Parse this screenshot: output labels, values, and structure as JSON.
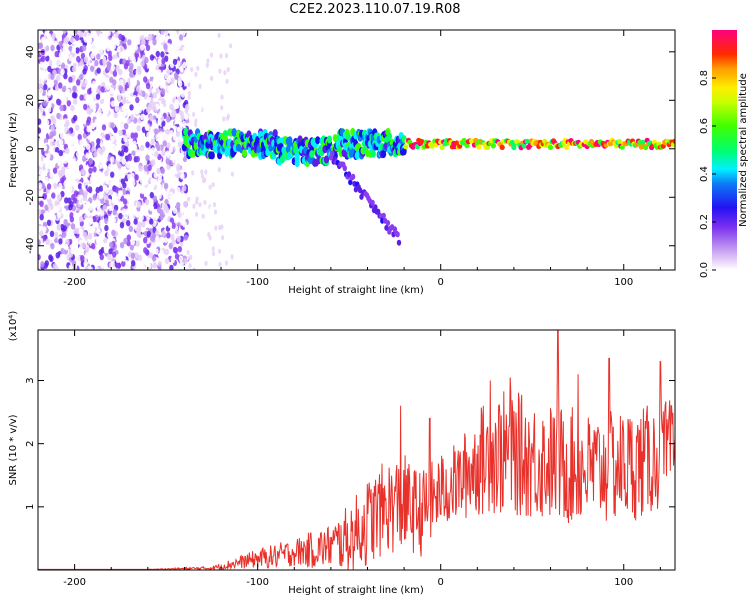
{
  "figure": {
    "title": "C2E2.2023.110.07.19.R08"
  },
  "chart_data": [
    {
      "type": "heatmap",
      "panel": "spectrogram",
      "xlabel": "Height of straight line (km)",
      "ylabel": "Frequency (Hz)",
      "xlim": [
        -220,
        128
      ],
      "ylim": [
        -50,
        49
      ],
      "xticks": [
        -200,
        -100,
        0,
        100
      ],
      "yticks": [
        40,
        20,
        0,
        -20,
        -40
      ],
      "colorbar": {
        "label": "Normalized spectral amplitude",
        "range": [
          0.0,
          1.0
        ],
        "ticks": [
          "0.0",
          "0.2",
          "0.4",
          "0.6",
          "0.8"
        ],
        "colormap": [
          "#ffffff",
          "#e6cff8",
          "#b98cef",
          "#8a3cf0",
          "#5a1ee6",
          "#1a10f0",
          "#0b7cf5",
          "#00f0ff",
          "#00ff6a",
          "#40ff00",
          "#c8ff00",
          "#ffee00",
          "#ff9a00",
          "#ff2a00",
          "#ff0080",
          "#ff00ff"
        ]
      },
      "features": [
        {
          "name": "broadband_noise",
          "x_range": [
            -220,
            -138
          ],
          "y_range": [
            -50,
            49
          ],
          "amplitude": 0.15
        },
        {
          "name": "signal_band",
          "x_range": [
            -140,
            128
          ],
          "center_hz": 2,
          "halfwidth_hz": 2.5,
          "amplitude": 0.9
        },
        {
          "name": "diverging_branch",
          "x_start": -60,
          "x_end": -22,
          "y_start": -2,
          "y_end": -38
        }
      ]
    },
    {
      "type": "line",
      "panel": "snr",
      "xlabel": "Height of straight line (km)",
      "ylabel": "SNR (10 * v/v)",
      "y_multiplier_label": "(x10⁴)",
      "xlim": [
        -220,
        128
      ],
      "ylim": [
        0,
        3.8
      ],
      "xticks": [
        -200,
        -100,
        0,
        100
      ],
      "yticks": [
        1,
        2,
        3
      ],
      "color": "#e8312b",
      "envelope": {
        "x": [
          -220,
          -160,
          -125,
          -110,
          -100,
          -90,
          -80,
          -70,
          -60,
          -50,
          -40,
          -30,
          -20,
          -15,
          -10,
          0,
          10,
          20,
          30,
          40,
          50,
          60,
          70,
          80,
          90,
          100,
          110,
          120,
          128
        ],
        "y": [
          0.01,
          0.01,
          0.03,
          0.12,
          0.18,
          0.22,
          0.28,
          0.32,
          0.38,
          0.5,
          0.75,
          1.0,
          1.05,
          0.95,
          0.9,
          1.25,
          1.4,
          1.7,
          1.85,
          1.85,
          1.75,
          1.7,
          1.65,
          1.6,
          1.6,
          1.65,
          1.7,
          1.8,
          1.9
        ],
        "spread": [
          0,
          0,
          0.03,
          0.1,
          0.15,
          0.2,
          0.22,
          0.3,
          0.35,
          0.55,
          0.7,
          0.75,
          0.8,
          0.7,
          0.7,
          0.6,
          0.65,
          0.85,
          1.0,
          1.0,
          0.95,
          0.95,
          0.95,
          0.9,
          0.9,
          0.9,
          0.9,
          0.85,
          0.85
        ]
      },
      "peaks": [
        {
          "x": -22,
          "y": 2.6
        },
        {
          "x": -6,
          "y": 2.4
        },
        {
          "x": 27,
          "y": 3.0
        },
        {
          "x": 38,
          "y": 3.05
        },
        {
          "x": 64,
          "y": 3.8
        },
        {
          "x": 75,
          "y": 3.1
        },
        {
          "x": 92,
          "y": 3.35
        },
        {
          "x": 120,
          "y": 3.3
        },
        {
          "x": 126,
          "y": 2.6
        }
      ]
    }
  ]
}
